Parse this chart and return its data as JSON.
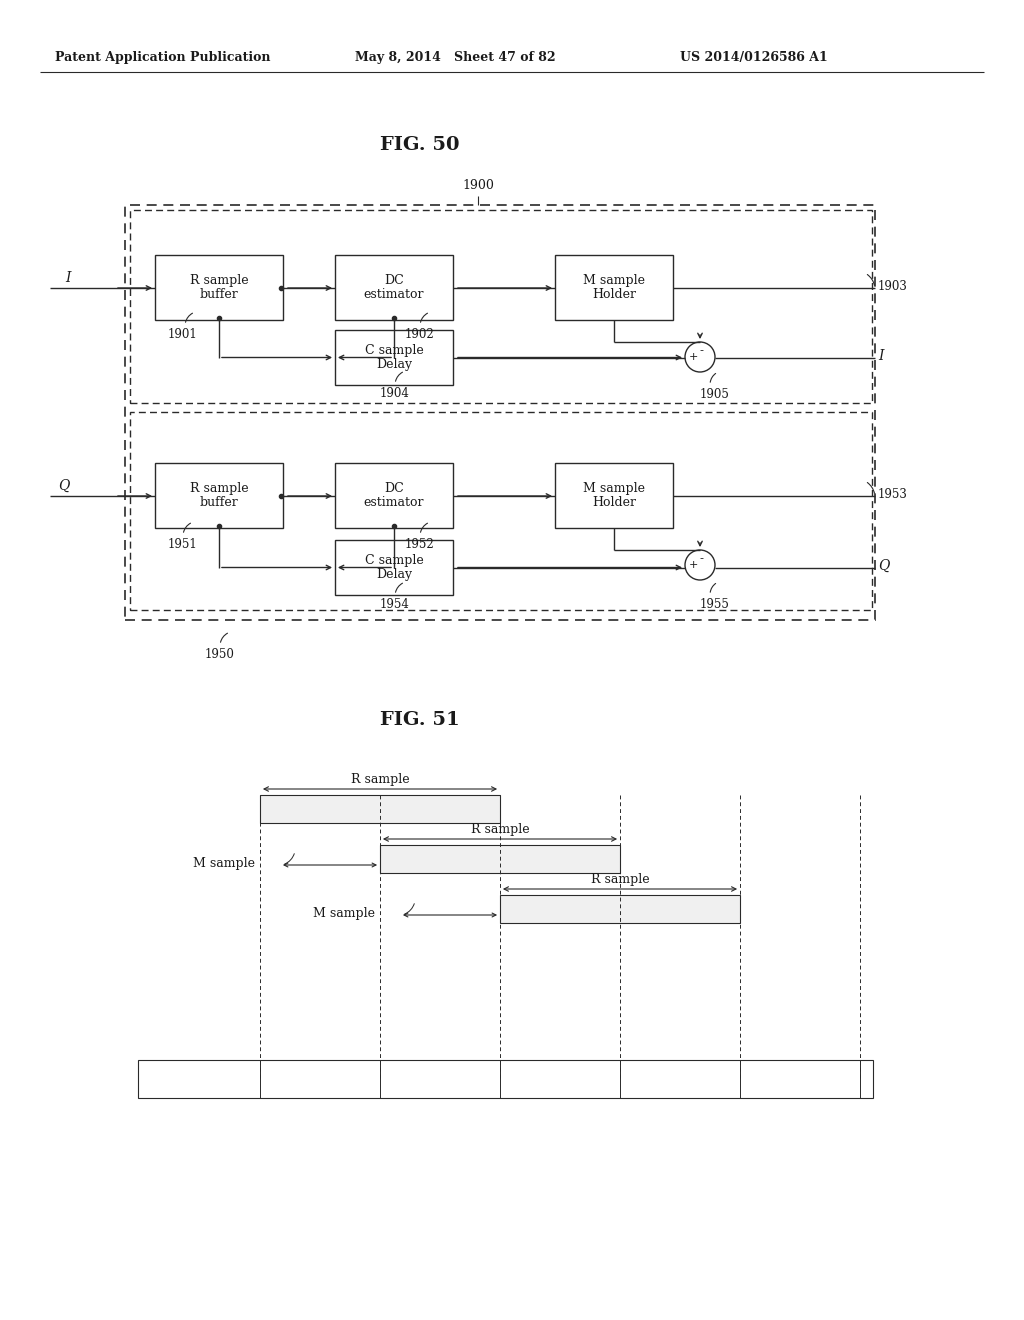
{
  "bg_color": "#ffffff",
  "text_color": "#1a1a1a",
  "header_left": "Patent Application Publication",
  "header_mid": "May 8, 2014   Sheet 47 of 82",
  "header_right": "US 2014/0126586 A1",
  "fig50_title": "FIG. 50",
  "fig51_title": "FIG. 51",
  "lc": "#2a2a2a"
}
